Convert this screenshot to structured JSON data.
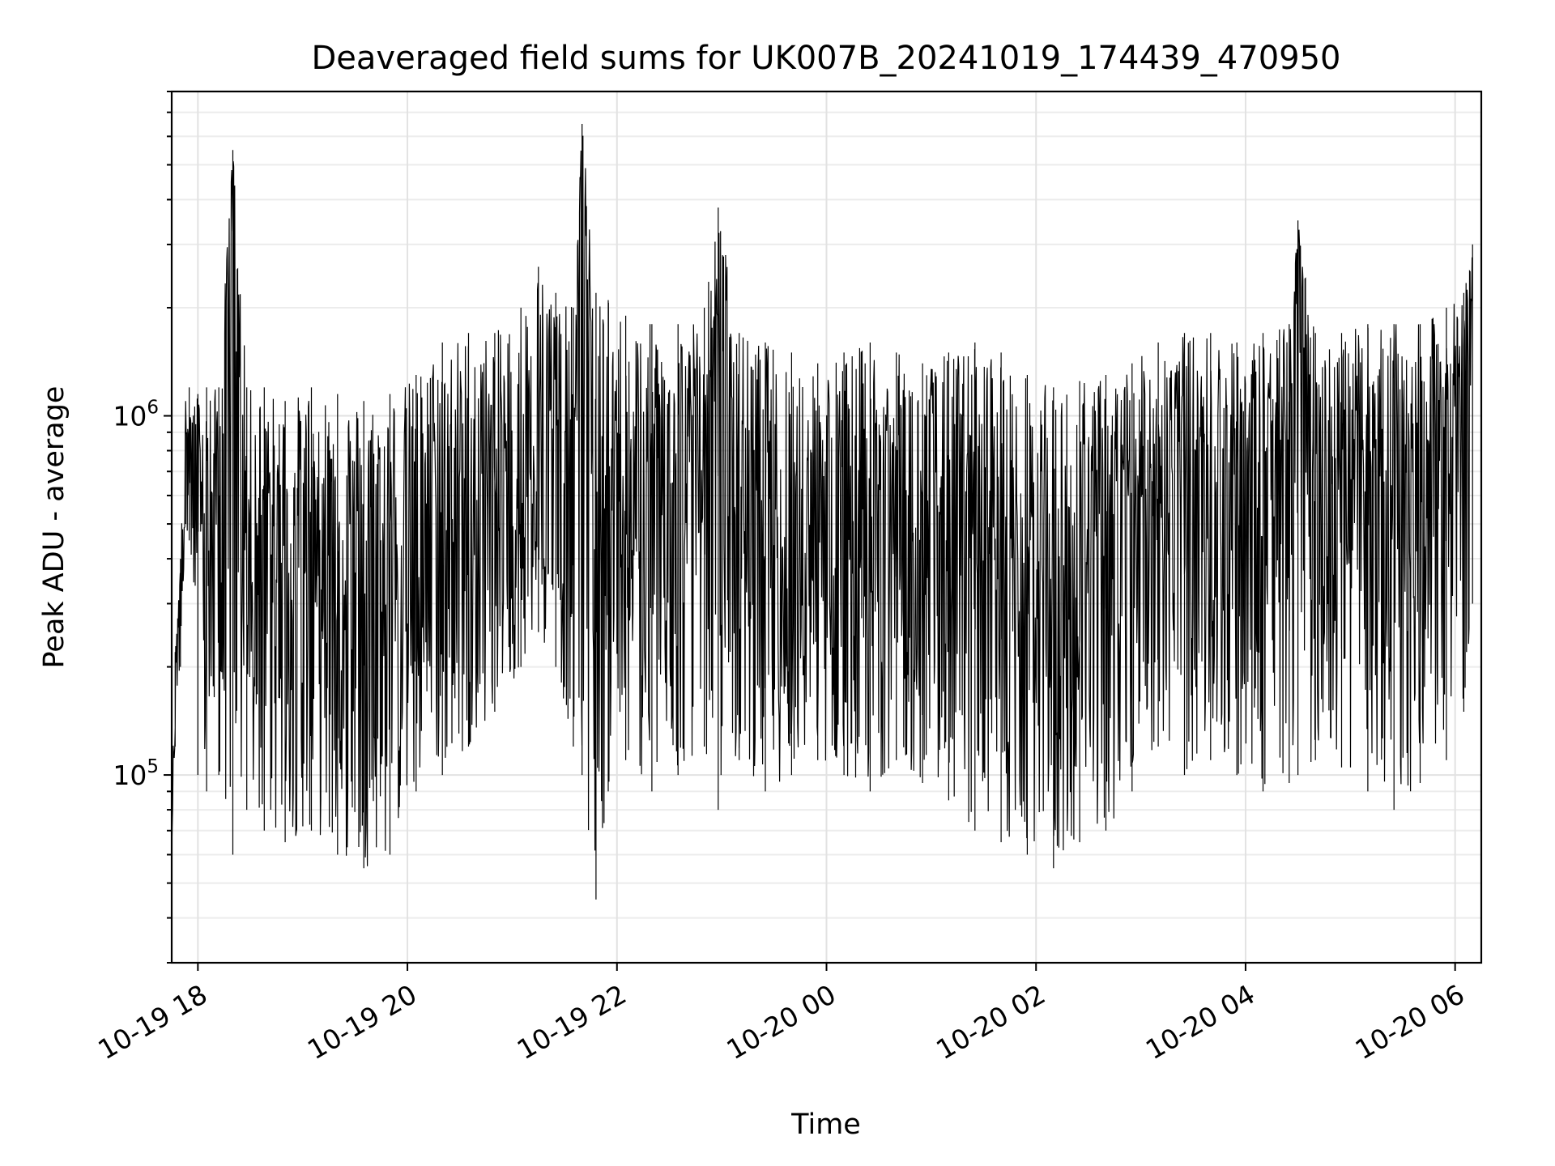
{
  "chart_data": {
    "type": "line",
    "title": "Deaveraged field sums for UK007B_20241019_174439_470950",
    "xlabel": "Time",
    "ylabel": "Peak ADU - average",
    "y_scale": "log",
    "ylim": [
      30000,
      8000000
    ],
    "xlim": [
      "2024-10-19 17:45",
      "2024-10-20 06:15"
    ],
    "grid": true,
    "x_ticks": [
      {
        "date": "2024-10-19 18:00",
        "label": "10-19 18"
      },
      {
        "date": "2024-10-19 20:00",
        "label": "10-19 20"
      },
      {
        "date": "2024-10-19 22:00",
        "label": "10-19 22"
      },
      {
        "date": "2024-10-20 00:00",
        "label": "10-20 00"
      },
      {
        "date": "2024-10-20 02:00",
        "label": "10-20 02"
      },
      {
        "date": "2024-10-20 04:00",
        "label": "10-20 04"
      },
      {
        "date": "2024-10-20 06:00",
        "label": "10-20 06"
      }
    ],
    "y_ticks": [
      {
        "value": 100000,
        "base": "10",
        "exp": "5"
      },
      {
        "value": 1000000,
        "base": "10",
        "exp": "6"
      }
    ],
    "line_color": "#000000",
    "series": [
      {
        "x": [
          "2024-10-19 17:45",
          "2024-10-19 17:47",
          "2024-10-19 17:50",
          "2024-10-19 17:53",
          "2024-10-19 17:55",
          "2024-10-19 18:00",
          "2024-10-19 18:05",
          "2024-10-19 18:12",
          "2024-10-19 18:20",
          "2024-10-19 18:28",
          "2024-10-19 18:38",
          "2024-10-19 18:50",
          "2024-10-19 19:05",
          "2024-10-19 19:20",
          "2024-10-19 19:35",
          "2024-10-19 19:50",
          "2024-10-19 20:05",
          "2024-10-19 20:20",
          "2024-10-19 20:35",
          "2024-10-19 20:50",
          "2024-10-19 21:05",
          "2024-10-19 21:15",
          "2024-10-19 21:25",
          "2024-10-19 21:35",
          "2024-10-19 21:40",
          "2024-10-19 21:48",
          "2024-10-19 21:55",
          "2024-10-19 22:05",
          "2024-10-19 22:20",
          "2024-10-19 22:35",
          "2024-10-19 22:50",
          "2024-10-19 22:58",
          "2024-10-19 23:10",
          "2024-10-19 23:25",
          "2024-10-19 23:40",
          "2024-10-19 23:55",
          "2024-10-20 00:10",
          "2024-10-20 00:25",
          "2024-10-20 00:40",
          "2024-10-20 00:55",
          "2024-10-20 01:10",
          "2024-10-20 01:25",
          "2024-10-20 01:40",
          "2024-10-20 01:55",
          "2024-10-20 02:10",
          "2024-10-20 02:25",
          "2024-10-20 02:40",
          "2024-10-20 02:55",
          "2024-10-20 03:10",
          "2024-10-20 03:25",
          "2024-10-20 03:40",
          "2024-10-20 03:55",
          "2024-10-20 04:10",
          "2024-10-20 04:25",
          "2024-10-20 04:30",
          "2024-10-20 04:40",
          "2024-10-20 04:55",
          "2024-10-20 05:10",
          "2024-10-20 05:25",
          "2024-10-20 05:40",
          "2024-10-20 05:55",
          "2024-10-20 06:05",
          "2024-10-20 06:10"
        ],
        "y": [
          60000,
          200000,
          350000,
          900000,
          800000,
          700000,
          600000,
          500000,
          5500000,
          450000,
          500000,
          400000,
          550000,
          450000,
          400000,
          450000,
          550000,
          600000,
          650000,
          700000,
          800000,
          1000000,
          900000,
          700000,
          6500000,
          500000,
          700000,
          600000,
          550000,
          600000,
          800000,
          2500000,
          700000,
          600000,
          550000,
          500000,
          550000,
          600000,
          550000,
          500000,
          550000,
          500000,
          450000,
          400000,
          380000,
          400000,
          450000,
          500000,
          800000,
          800000,
          750000,
          700000,
          750000,
          800000,
          3000000,
          800000,
          750000,
          800000,
          750000,
          800000,
          900000,
          1500000,
          2800000
        ],
        "y_low": [
          60000,
          120000,
          200000,
          500000,
          450000,
          100000,
          90000,
          100000,
          60000,
          80000,
          70000,
          65000,
          70000,
          60000,
          55000,
          60000,
          90000,
          100000,
          120000,
          150000,
          200000,
          250000,
          200000,
          120000,
          100000,
          45000,
          90000,
          110000,
          90000,
          100000,
          120000,
          80000,
          110000,
          90000,
          100000,
          110000,
          100000,
          90000,
          110000,
          95000,
          85000,
          70000,
          65000,
          60000,
          55000,
          65000,
          70000,
          90000,
          120000,
          100000,
          110000,
          100000,
          90000,
          95000,
          100000,
          110000,
          105000,
          90000,
          80000,
          95000,
          110000,
          150000,
          300000
        ],
        "y_high": [
          80000,
          220000,
          400000,
          1100000,
          1200000,
          1150000,
          1200000,
          1200000,
          5500000,
          1200000,
          1200000,
          1100000,
          1200000,
          1150000,
          1100000,
          1150000,
          1300000,
          1600000,
          1700000,
          1700000,
          2000000,
          2600000,
          2200000,
          2000000,
          6500000,
          2200000,
          2100000,
          1900000,
          1800000,
          1800000,
          2000000,
          3800000,
          1700000,
          1600000,
          1500000,
          1400000,
          1500000,
          1600000,
          1500000,
          1400000,
          1500000,
          1600000,
          1500000,
          1300000,
          1200000,
          1250000,
          1300000,
          1400000,
          1600000,
          1700000,
          1700000,
          1600000,
          1700000,
          1800000,
          3500000,
          1700000,
          1700000,
          1800000,
          1800000,
          1800000,
          2000000,
          2200000,
          3000000
        ]
      }
    ]
  }
}
